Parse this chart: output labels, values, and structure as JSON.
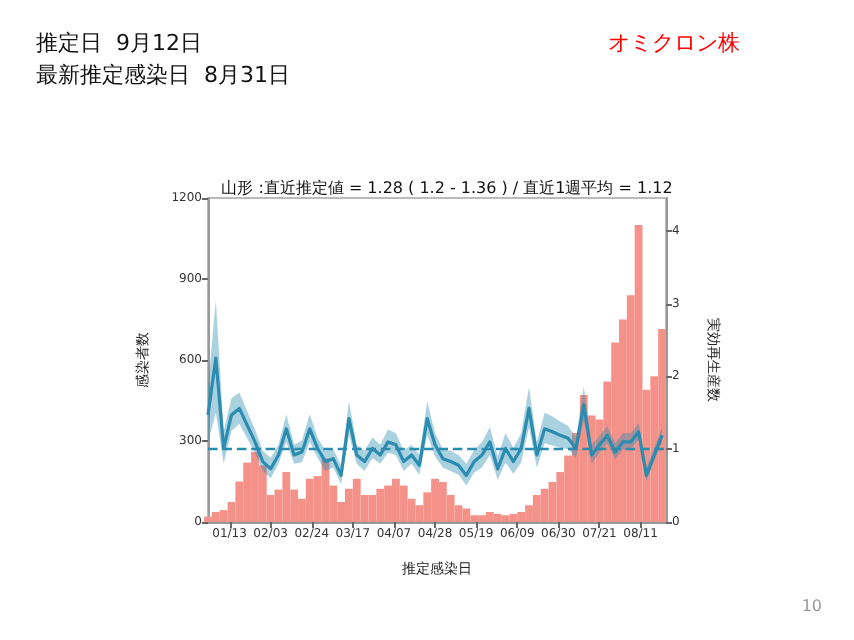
{
  "chart_data": {
    "type": "bar",
    "title": "山形 :直近推定値 = 1.28 ( 1.2 - 1.36 ) / 直近1週平均 = 1.12",
    "annotations": [
      "推定日  9月12日",
      "最新推定感染日  8月31日",
      "オミクロン株",
      "10"
    ],
    "xlabel": "推定感染日",
    "ylabel": "感染者数",
    "y2label": "実効再生産数",
    "x": [
      "--01-02",
      "--01-06",
      "--01-10",
      "--01-14",
      "--01-18",
      "--01-22",
      "--01-26",
      "--01-30",
      "--02-03",
      "--02-07",
      "--02-11",
      "--02-15",
      "--02-19",
      "--02-23",
      "--02-27",
      "--03-03",
      "--03-07",
      "--03-11",
      "--03-15",
      "--03-19",
      "--03-23",
      "--03-27",
      "--03-31",
      "--04-04",
      "--04-08",
      "--04-12",
      "--04-16",
      "--04-20",
      "--04-24",
      "--04-28",
      "--05-02",
      "--05-06",
      "--05-10",
      "--05-14",
      "--05-18",
      "--05-22",
      "--05-26",
      "--05-30",
      "--06-03",
      "--06-07",
      "--06-11",
      "--06-15",
      "--06-19",
      "--06-23",
      "--06-27",
      "--07-01",
      "--07-05",
      "--07-09",
      "--07-13",
      "--07-17",
      "--07-21",
      "--07-25",
      "--07-29",
      "--08-02",
      "--08-06",
      "--08-10",
      "--08-14",
      "--08-18",
      "--08-22"
    ],
    "xlim": [
      "--01-02",
      "--08-24"
    ],
    "xticks": [
      {
        "value": "--01-13",
        "label": "01/13"
      },
      {
        "value": "--02-03",
        "label": "02/03"
      },
      {
        "value": "--02-24",
        "label": "02/24"
      },
      {
        "value": "--03-17",
        "label": "03/17"
      },
      {
        "value": "--04-07",
        "label": "04/07"
      },
      {
        "value": "--04-28",
        "label": "04/28"
      },
      {
        "value": "--05-19",
        "label": "05/19"
      },
      {
        "value": "--06-09",
        "label": "06/09"
      },
      {
        "value": "--06-30",
        "label": "06/30"
      },
      {
        "value": "--07-21",
        "label": "07/21"
      },
      {
        "value": "--08-11",
        "label": "08/11"
      }
    ],
    "ylim": [
      0,
      1200
    ],
    "yticks": [
      0,
      300,
      600,
      900,
      1200
    ],
    "y2lim": [
      0,
      4.45
    ],
    "y2ticks": [
      0,
      1,
      2,
      3,
      4
    ],
    "series": [
      {
        "color": "#f4928a",
        "values": [
          20,
          37,
          44,
          74,
          150,
          220,
          260,
          210,
          100,
          120,
          185,
          120,
          86,
          160,
          170,
          235,
          135,
          74,
          123,
          160,
          100,
          100,
          123,
          135,
          160,
          135,
          86,
          62,
          110,
          160,
          148,
          100,
          62,
          50,
          25,
          25,
          37,
          30,
          25,
          30,
          37,
          62,
          100,
          123,
          148,
          185,
          246,
          330,
          470,
          394,
          380,
          520,
          665,
          750,
          840,
          1100,
          490,
          540,
          715
        ]
      },
      {
        "type": "line",
        "axis": "y2",
        "color": "#2b8cb0",
        "values": [
          1.47,
          2.25,
          1.01,
          1.47,
          1.56,
          1.33,
          1.1,
          0.83,
          0.73,
          0.92,
          1.28,
          0.92,
          0.96,
          1.28,
          1.01,
          0.83,
          0.87,
          0.64,
          1.42,
          0.92,
          0.83,
          1.01,
          0.92,
          1.1,
          1.06,
          0.83,
          0.92,
          0.78,
          1.42,
          1.06,
          0.87,
          0.83,
          0.78,
          0.64,
          0.83,
          0.92,
          1.1,
          0.73,
          1.01,
          0.83,
          1.01,
          1.56,
          0.92,
          1.28,
          1.24,
          1.19,
          1.15,
          1.01,
          1.61,
          0.92,
          1.06,
          1.19,
          0.96,
          1.1,
          1.1,
          1.24,
          0.64,
          0.92,
          1.19
        ],
        "lower": [
          1.1,
          1.5,
          0.8,
          1.25,
          1.35,
          1.15,
          0.95,
          0.7,
          0.6,
          0.8,
          1.1,
          0.8,
          0.82,
          1.1,
          0.88,
          0.7,
          0.75,
          0.52,
          1.2,
          0.8,
          0.7,
          0.88,
          0.8,
          0.95,
          0.92,
          0.7,
          0.8,
          0.65,
          1.2,
          0.9,
          0.75,
          0.7,
          0.65,
          0.5,
          0.68,
          0.75,
          0.92,
          0.58,
          0.82,
          0.66,
          0.82,
          1.3,
          0.75,
          1.08,
          1.05,
          1.02,
          1.0,
          0.88,
          1.4,
          0.8,
          0.95,
          1.08,
          0.86,
          1.0,
          1.0,
          1.14,
          0.56,
          0.84,
          1.1
        ],
        "upper": [
          1.85,
          3.05,
          1.25,
          1.7,
          1.78,
          1.52,
          1.27,
          0.98,
          0.88,
          1.06,
          1.48,
          1.06,
          1.12,
          1.48,
          1.16,
          0.98,
          1.0,
          0.78,
          1.66,
          1.06,
          0.98,
          1.16,
          1.06,
          1.27,
          1.22,
          0.98,
          1.06,
          0.92,
          1.66,
          1.22,
          1.0,
          0.98,
          0.92,
          0.8,
          0.99,
          1.1,
          1.3,
          0.9,
          1.22,
          1.02,
          1.22,
          1.85,
          1.1,
          1.5,
          1.45,
          1.38,
          1.32,
          1.16,
          1.86,
          1.06,
          1.18,
          1.32,
          1.08,
          1.22,
          1.22,
          1.36,
          0.74,
          1.02,
          1.3
        ]
      }
    ],
    "ref_lines": [
      {
        "axis": "y2",
        "value": 1,
        "color": "#2b8cb0",
        "line_style": "dashed"
      }
    ],
    "grid": false
  }
}
